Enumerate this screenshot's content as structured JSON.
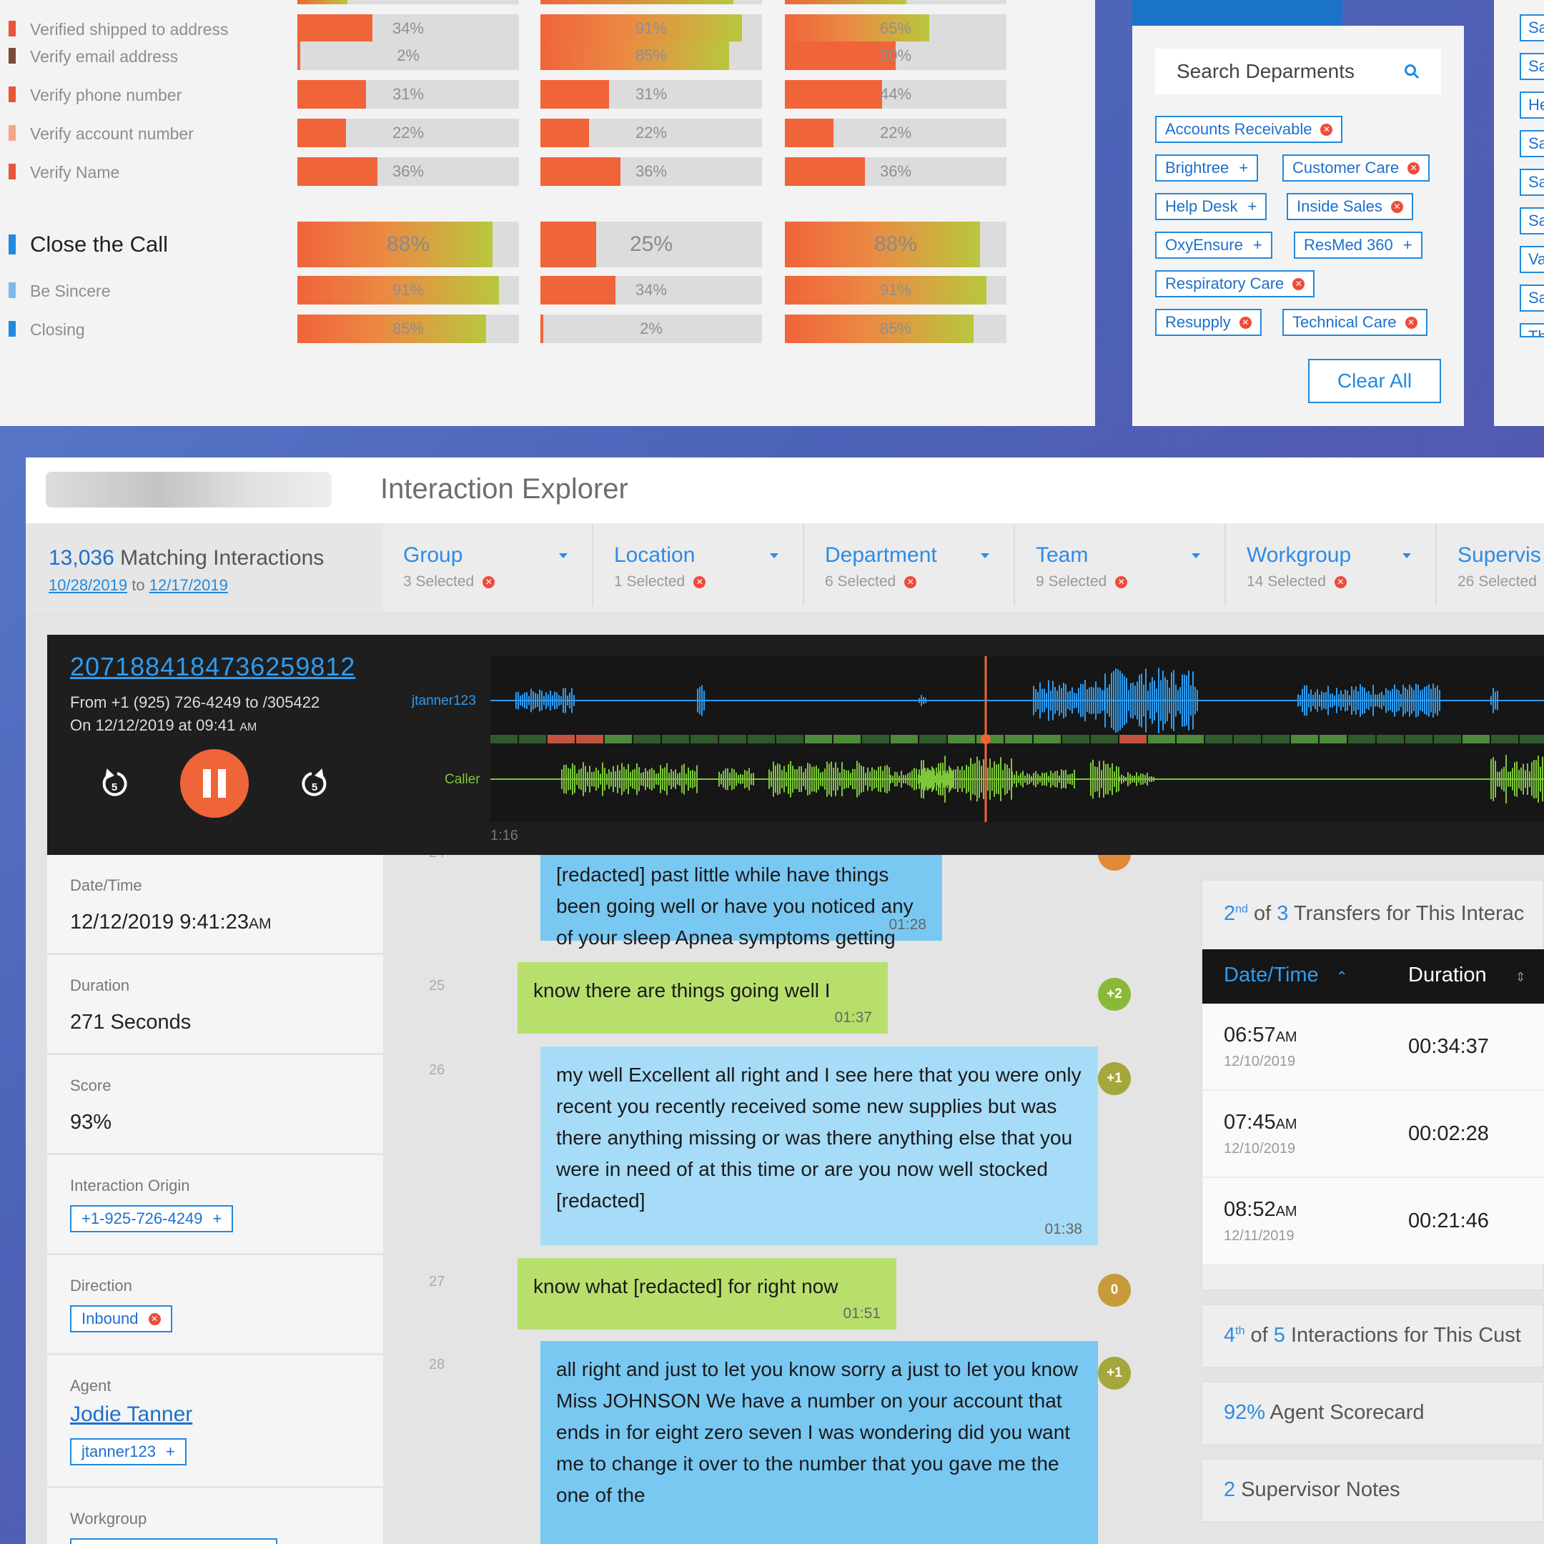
{
  "scorecard": {
    "rows": [
      {
        "label": "Verified shipped to address",
        "mark": "#e8563a",
        "values": [
          "34%",
          "91%",
          "65%"
        ],
        "fills": [
          34,
          91,
          65
        ]
      },
      {
        "label": "Verify email address",
        "mark": "#7a4b3a",
        "values": [
          "2%",
          "85%",
          "50%"
        ],
        "fills": [
          2,
          85,
          50
        ]
      },
      {
        "label": "Verify phone number",
        "mark": "#e8563a",
        "values": [
          "31%",
          "31%",
          "44%"
        ],
        "fills": [
          31,
          31,
          44
        ]
      },
      {
        "label": "Verify account number",
        "mark": "#f6a58a",
        "values": [
          "22%",
          "22%",
          "22%"
        ],
        "fills": [
          22,
          22,
          22
        ]
      },
      {
        "label": "Verify Name",
        "mark": "#e8563a",
        "values": [
          "36%",
          "36%",
          "36%"
        ],
        "fills": [
          36,
          36,
          36
        ]
      },
      {
        "label": "Close the Call",
        "mark": "#1f8ae0",
        "values": [
          "88%",
          "25%",
          "88%"
        ],
        "fills": [
          88,
          25,
          88
        ]
      },
      {
        "label": "Be Sincere",
        "mark": "#7fb8ec",
        "values": [
          "91%",
          "34%",
          "91%"
        ],
        "fills": [
          91,
          34,
          91
        ]
      },
      {
        "label": "Closing",
        "mark": "#1f8ae0",
        "values": [
          "85%",
          "2%",
          "85%"
        ],
        "fills": [
          85,
          2,
          85
        ]
      }
    ]
  },
  "departments": {
    "search_placeholder": "Search Deparments",
    "chips": [
      {
        "label": "Accounts Receivable",
        "selected": true
      },
      {
        "label": "Brightree",
        "selected": false
      },
      {
        "label": "Customer Care",
        "selected": true
      },
      {
        "label": "Help Desk",
        "selected": false
      },
      {
        "label": "Inside Sales",
        "selected": true
      },
      {
        "label": "OxyEnsure",
        "selected": false
      },
      {
        "label": "ResMed 360",
        "selected": false
      },
      {
        "label": "Respiratory Care",
        "selected": true
      },
      {
        "label": "Resupply",
        "selected": true
      },
      {
        "label": "Technical Care",
        "selected": true
      }
    ],
    "clear_all": "Clear All"
  },
  "sliver": {
    "chips": [
      "Sa",
      "Sa",
      "He",
      "Sa",
      "Sa",
      "Sa",
      "Va",
      "Sa",
      "Th"
    ]
  },
  "explorer": {
    "title": "Interaction Explorer",
    "matching": {
      "count": "13,036",
      "label": "Matching Interactions",
      "from": "10/28/2019",
      "to_word": "to",
      "to": "12/17/2019"
    },
    "filters": [
      {
        "name": "Group",
        "selected": "3 Selected"
      },
      {
        "name": "Location",
        "selected": "1 Selected"
      },
      {
        "name": "Department",
        "selected": "6 Selected"
      },
      {
        "name": "Team",
        "selected": "9 Selected"
      },
      {
        "name": "Workgroup",
        "selected": "14 Selected"
      },
      {
        "name": "Supervis",
        "selected": "26 Selected"
      }
    ]
  },
  "player": {
    "call_id": "2071884184736259812",
    "from": "From +1 (925) 726-4249 to /305422",
    "on": "On 12/12/2019 at 09:41",
    "on_ampm": "AM",
    "agent_track": "jtanner123",
    "caller_track": "Caller",
    "time": "1:16",
    "progress": 0.47
  },
  "details": {
    "datetime_label": "Date/Time",
    "datetime_value": "12/12/2019 9:41:23",
    "datetime_ampm": "AM",
    "duration_label": "Duration",
    "duration_value": "271 Seconds",
    "score_label": "Score",
    "score_value": "93%",
    "origin_label": "Interaction Origin",
    "origin_value": "+1-925-726-4249",
    "direction_label": "Direction",
    "direction_value": "Inbound",
    "agent_label": "Agent",
    "agent_name": "Jodie Tanner",
    "agent_id": "jtanner123",
    "workgroup_label": "Workgroup"
  },
  "transcript": [
    {
      "speaker": "agent",
      "line": "24",
      "text": "[redacted] past little while have things been going well or have you noticed any of your sleep Apnea symptoms getting any worse",
      "time": "01:28",
      "sentiment": "",
      "shade": "dark"
    },
    {
      "speaker": "caller",
      "line": "25",
      "text": "know there are things going well I",
      "time": "01:37",
      "sentiment": "+2"
    },
    {
      "speaker": "agent",
      "line": "26",
      "text": "my well Excellent all right and I see here that you were only recent you recently received some new supplies but was there anything missing or was there anything else that you were in need of at this time or are you now well stocked [redacted]",
      "time": "01:38",
      "sentiment": "+1",
      "shade": "light"
    },
    {
      "speaker": "caller",
      "line": "27",
      "text": "know what [redacted] for right now",
      "time": "01:51",
      "sentiment": "0"
    },
    {
      "speaker": "agent",
      "line": "28",
      "text": "all right and just to let you know sorry a just to let you know Miss JOHNSON We have a number on your account that ends in for eight zero seven I was wondering did you want me to change it over to the number that you gave me the one of the",
      "time": "01:57",
      "sentiment": "+1",
      "shade": "dark"
    }
  ],
  "transfers": {
    "ordinal": "2",
    "ordinal_suffix": "nd",
    "of": "of",
    "total": "3",
    "label": "Transfers for This Interac",
    "col_date": "Date/Time",
    "col_duration": "Duration",
    "rows": [
      {
        "time": "06:57",
        "ampm": "AM",
        "date": "12/10/2019",
        "duration": "00:34:37"
      },
      {
        "time": "07:45",
        "ampm": "AM",
        "date": "12/10/2019",
        "duration": "00:02:28"
      },
      {
        "time": "08:52",
        "ampm": "AM",
        "date": "12/11/2019",
        "duration": "00:21:46"
      }
    ]
  },
  "interactions": {
    "ordinal": "4",
    "ordinal_suffix": "th",
    "of": "of",
    "total": "5",
    "label": "Interactions for This Cust"
  },
  "scorecard_card": {
    "value": "92%",
    "label": "Agent Scorecard"
  },
  "notes_card": {
    "value": "2",
    "label": "Supervisor Notes"
  },
  "colors": {
    "accent": "#1f8ae0",
    "orange": "#f0643a",
    "agent_wave": "#2e9cf0",
    "caller_wave": "#7ec63c",
    "remove": "#ef4b3a"
  }
}
